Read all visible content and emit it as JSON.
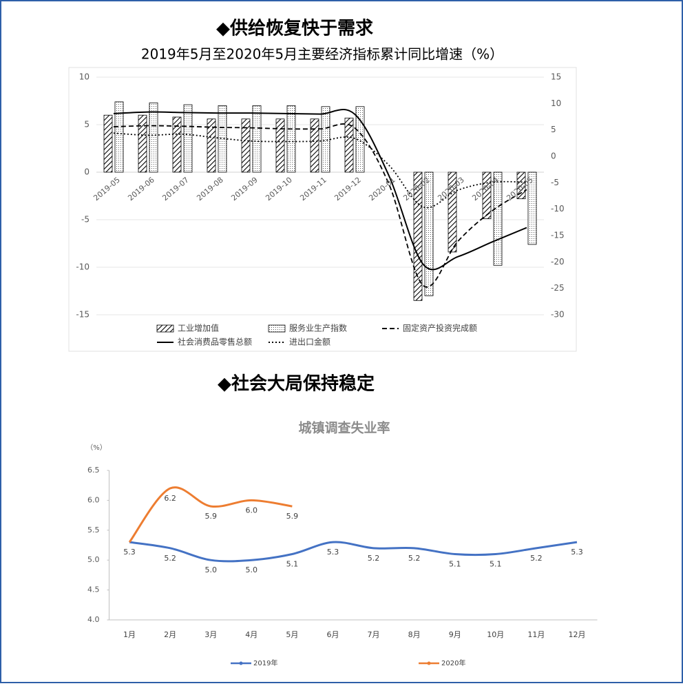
{
  "chart_data": [
    {
      "type": "bar",
      "heading": "◆供给恢复快于需求",
      "title": "2019年5月至2020年5月主要经济指标累计同比增速（%）",
      "categories": [
        "2019-05",
        "2019-06",
        "2019-07",
        "2019-08",
        "2019-09",
        "2019-10",
        "2019-11",
        "2019-12",
        "2020-01",
        "2020-02",
        "2020-03",
        "2020-04",
        "2020-05"
      ],
      "ylim": [
        -15,
        10
      ],
      "yticks": [
        -15,
        -10,
        -5,
        0,
        5,
        10
      ],
      "y2lim": [
        -30,
        15
      ],
      "y2ticks": [
        -30,
        -25,
        -20,
        -15,
        -10,
        -5,
        0,
        5,
        10,
        15
      ],
      "grid": true,
      "series": [
        {
          "name": "工业增加值",
          "type": "bar",
          "pattern": "hatch",
          "color": "#000000",
          "values": [
            6.0,
            6.0,
            5.8,
            5.6,
            5.6,
            5.6,
            5.6,
            5.7,
            null,
            -13.5,
            -8.4,
            -4.9,
            -2.8
          ]
        },
        {
          "name": "服务业生产指数",
          "type": "bar",
          "pattern": "dots",
          "color": "#000000",
          "values": [
            7.4,
            7.3,
            7.1,
            7.0,
            7.0,
            7.0,
            6.9,
            6.9,
            null,
            -13.0,
            null,
            -9.8,
            -7.6
          ]
        },
        {
          "name": "固定资产投资完成额",
          "type": "line",
          "axis": "y2",
          "dash": "dashed",
          "color": "#000000",
          "values": [
            5.6,
            5.8,
            5.7,
            5.5,
            5.4,
            5.2,
            5.2,
            5.4,
            -5.3,
            -24.5,
            -16.1,
            -10.3,
            -6.3
          ]
        },
        {
          "name": "社会消费品零售总额",
          "type": "line",
          "axis": "y2",
          "dash": "solid",
          "color": "#000000",
          "values": [
            8.1,
            8.4,
            8.3,
            8.2,
            8.2,
            8.1,
            8.0,
            8.0,
            -3.7,
            -20.5,
            -19.0,
            -16.2,
            -13.5
          ]
        },
        {
          "name": "进出口金额",
          "type": "line",
          "axis": "y2",
          "dash": "dotted",
          "color": "#000000",
          "values": [
            4.4,
            4.0,
            4.2,
            3.5,
            2.9,
            2.8,
            2.9,
            3.4,
            -1.7,
            -9.6,
            -6.4,
            -4.9,
            -4.9
          ]
        }
      ]
    },
    {
      "type": "line",
      "heading": "◆社会大局保持稳定",
      "title": "城镇调查失业率",
      "y_unit": "（%）",
      "categories": [
        "1月",
        "2月",
        "3月",
        "4月",
        "5月",
        "6月",
        "7月",
        "8月",
        "9月",
        "10月",
        "11月",
        "12月"
      ],
      "ylim": [
        4,
        6.5
      ],
      "yticks": [
        {
          "value": 4,
          "label": "4.0"
        },
        {
          "value": 4.5,
          "label": "4.5"
        },
        {
          "value": 5,
          "label": "5.0"
        },
        {
          "value": 5.5,
          "label": "5.5"
        },
        {
          "value": 6,
          "label": "6.0"
        },
        {
          "value": 6.5,
          "label": "6.5"
        }
      ],
      "grid": false,
      "series": [
        {
          "name": "2019年",
          "color": "#4472c4",
          "values": [
            5.3,
            5.2,
            5.0,
            5.0,
            5.1,
            5.3,
            5.2,
            5.2,
            5.1,
            5.1,
            5.2,
            5.3
          ],
          "value_labels": [
            "5.3",
            "5.2",
            "5.0",
            "5.0",
            "5.1",
            "5.3",
            "5.2",
            "5.2",
            "5.1",
            "5.1",
            "5.2",
            "5.3"
          ]
        },
        {
          "name": "2020年",
          "color": "#ed7d31",
          "values": [
            5.3,
            6.2,
            5.9,
            6.0,
            5.9,
            null,
            null,
            null,
            null,
            null,
            null,
            null
          ],
          "value_labels": [
            null,
            "6.2",
            "5.9",
            "6.0",
            "5.9",
            null,
            null,
            null,
            null,
            null,
            null,
            null
          ]
        }
      ]
    }
  ]
}
